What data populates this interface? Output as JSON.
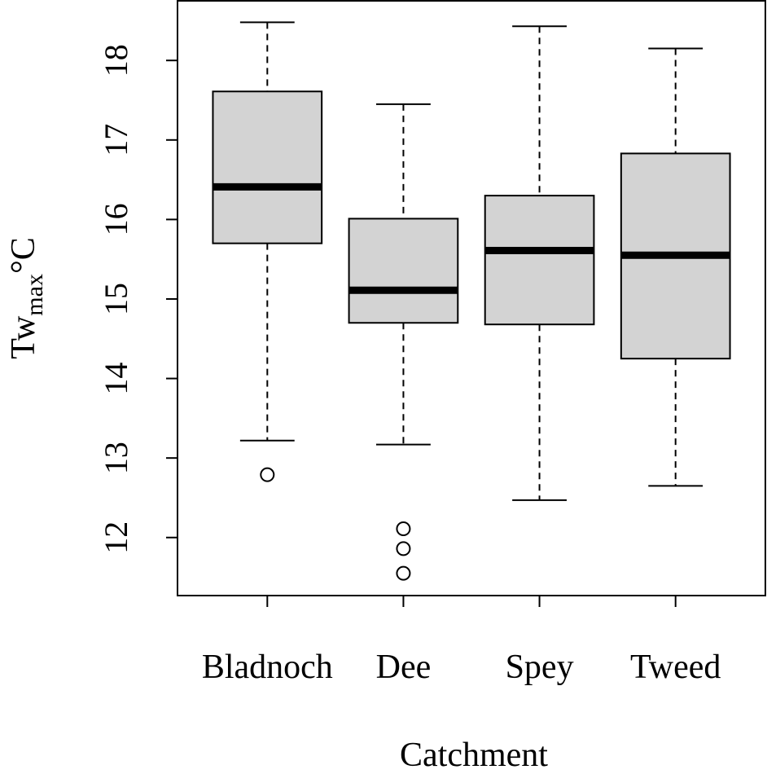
{
  "chart_data": {
    "type": "box",
    "xlabel": "Catchment",
    "ylabel": {
      "main": "Tw",
      "sub": "max",
      "unit": "°C"
    },
    "categories": [
      "Bladnoch",
      "Dee",
      "Spey",
      "Tweed"
    ],
    "boxes": [
      {
        "whisker_low": 13.22,
        "q1": 15.7,
        "median": 16.41,
        "q3": 17.61,
        "whisker_high": 18.48,
        "outliers": [
          12.79
        ]
      },
      {
        "whisker_low": 13.17,
        "q1": 14.7,
        "median": 15.11,
        "q3": 16.01,
        "whisker_high": 17.45,
        "outliers": [
          12.11,
          11.86,
          11.55
        ]
      },
      {
        "whisker_low": 12.47,
        "q1": 14.68,
        "median": 15.61,
        "q3": 16.3,
        "whisker_high": 18.43,
        "outliers": []
      },
      {
        "whisker_low": 12.65,
        "q1": 14.25,
        "median": 15.55,
        "q3": 16.83,
        "whisker_high": 18.15,
        "outliers": []
      }
    ],
    "color": "#d3d3d3",
    "ylim": [
      11.27,
      18.75
    ],
    "yticks": [
      12,
      13,
      14,
      15,
      16,
      17,
      18
    ]
  }
}
